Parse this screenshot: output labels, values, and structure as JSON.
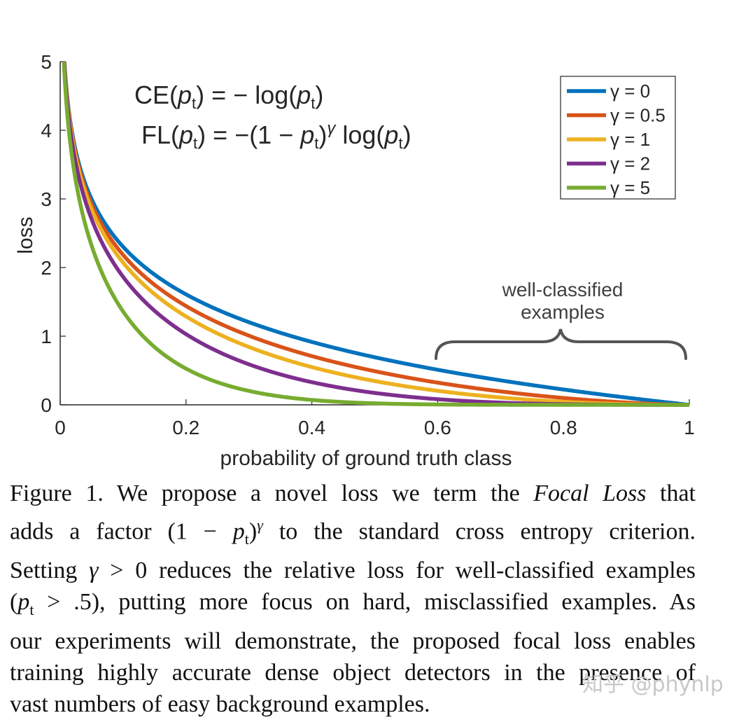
{
  "chart_data": {
    "type": "line",
    "title": "",
    "xlabel": "probability of ground truth class",
    "ylabel": "loss",
    "xlim": [
      0,
      1
    ],
    "ylim": [
      0,
      5
    ],
    "xticks": [
      "0",
      "0.2",
      "0.4",
      "0.6",
      "0.8",
      "1"
    ],
    "yticks": [
      "0",
      "1",
      "2",
      "3",
      "4",
      "5"
    ],
    "function": "FL(p) = -(1-p)^gamma * log(p)",
    "series": [
      {
        "name": "γ = 0",
        "gamma": 0,
        "color": "#0072BD"
      },
      {
        "name": "γ = 0.5",
        "gamma": 0.5,
        "color": "#D95319"
      },
      {
        "name": "γ = 1",
        "gamma": 1,
        "color": "#EDB120"
      },
      {
        "name": "γ = 2",
        "gamma": 2,
        "color": "#7E2F8E"
      },
      {
        "name": "γ = 5",
        "gamma": 5,
        "color": "#77AC30"
      }
    ],
    "legend_position": "top-right",
    "formulas": {
      "ce": "CE(pt) = − log(pt)",
      "fl": "FL(pt) = −(1 − pt)γ log(pt)"
    },
    "annotation": {
      "line1": "well-classified",
      "line2": "examples",
      "x_range": [
        0.6,
        1.0
      ]
    }
  },
  "caption": {
    "lines": [
      "Figure 1. We propose a novel loss we term the Focal Loss that",
      "adds a factor (1 − pt)γ to the standard cross entropy criterion.",
      "Setting γ > 0 reduces the relative loss for well-classified examples",
      "(pt > .5), putting more focus on hard, misclassified examples. As",
      "our experiments will demonstrate, the proposed focal loss enables",
      "training highly accurate dense object detectors in the presence of",
      "vast numbers of easy background examples."
    ]
  },
  "watermark": "知乎 @phynlp"
}
